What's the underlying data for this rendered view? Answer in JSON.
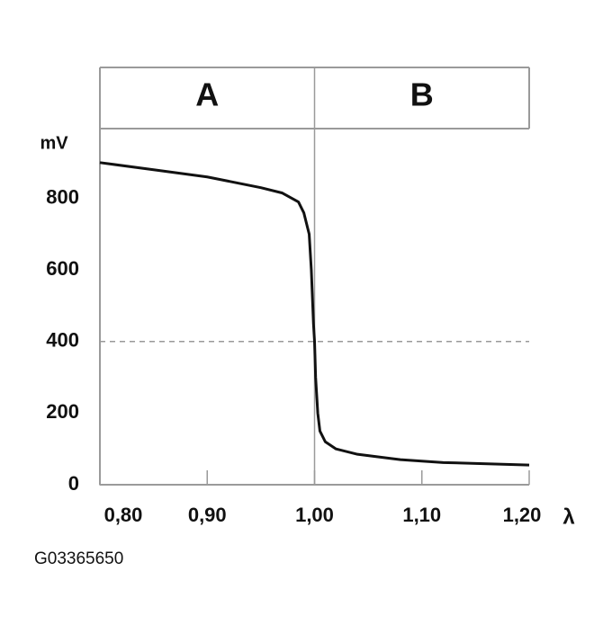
{
  "chart_data": {
    "type": "line",
    "regions": [
      "A",
      "B"
    ],
    "y_unit": "mV",
    "x_unit": "λ",
    "figure_id": "G03365650",
    "x": [
      0.8,
      0.85,
      0.9,
      0.95,
      0.97,
      0.985,
      0.99,
      0.995,
      0.997,
      0.999,
      1.0,
      1.001,
      1.003,
      1.005,
      1.01,
      1.02,
      1.04,
      1.08,
      1.12,
      1.2
    ],
    "series": [
      {
        "color": "#111111",
        "values": [
          900,
          880,
          860,
          830,
          815,
          790,
          760,
          700,
          600,
          450,
          400,
          300,
          200,
          150,
          120,
          100,
          85,
          70,
          62,
          55
        ]
      }
    ],
    "xlim": [
      0.8,
      1.2
    ],
    "xticks": [
      {
        "value": 0.8,
        "label": "0,80"
      },
      {
        "value": 0.9,
        "label": "0,90"
      },
      {
        "value": 1.0,
        "label": "1,00"
      },
      {
        "value": 1.1,
        "label": "1,10"
      },
      {
        "value": 1.2,
        "label": "1,20"
      }
    ],
    "ylim": [
      0,
      1000
    ],
    "yticks": [
      0,
      200,
      400,
      600,
      800
    ],
    "reference_y": 400,
    "divider_x": 1.0,
    "grid": false
  }
}
